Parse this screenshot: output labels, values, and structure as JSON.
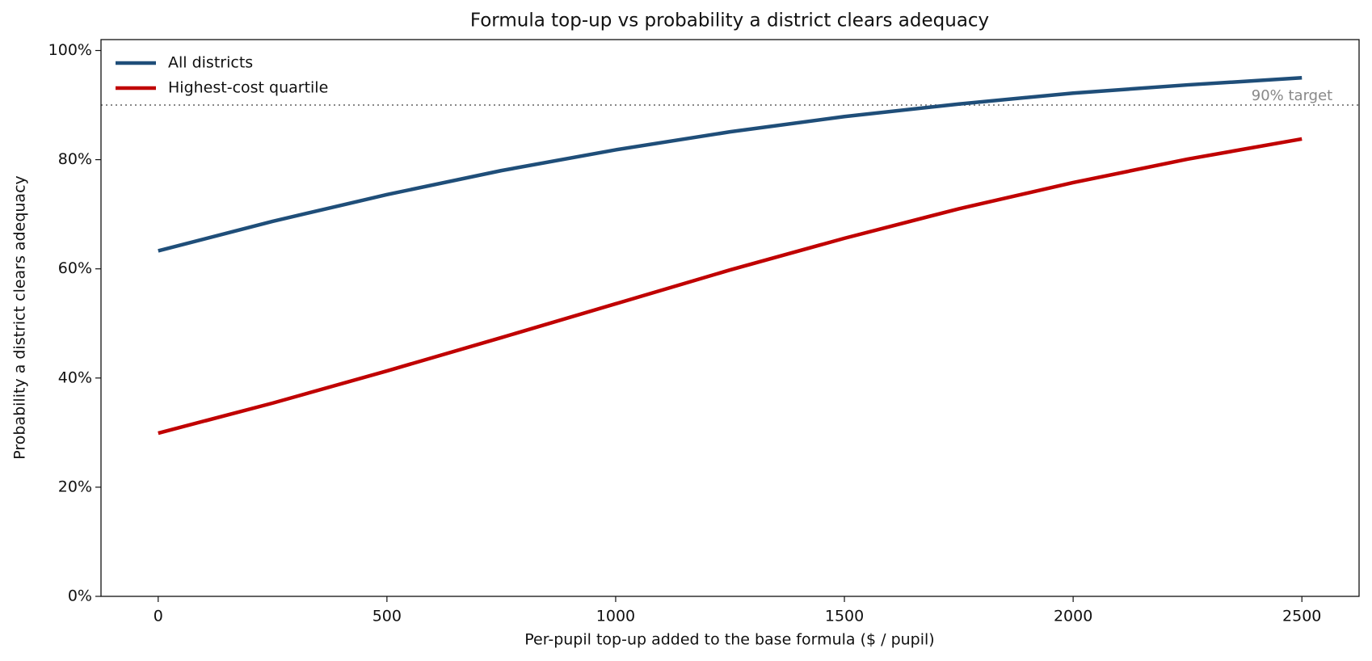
{
  "chart_data": {
    "type": "line",
    "title": "Formula top-up vs probability a district clears adequacy",
    "xlabel": "Per-pupil top-up added to the base formula  ($ / pupil)",
    "ylabel": "Probability a district clears adequacy",
    "x": [
      0,
      250,
      500,
      750,
      1000,
      1250,
      1500,
      1750,
      2000,
      2250,
      2500
    ],
    "series": [
      {
        "name": "All districts",
        "color": "#1f4e79",
        "values": [
          63.3,
          68.7,
          73.6,
          78.0,
          81.8,
          85.1,
          87.9,
          90.2,
          92.2,
          93.7,
          95.0
        ]
      },
      {
        "name": "Highest-cost quartile",
        "color": "#c00000",
        "values": [
          29.9,
          35.4,
          41.3,
          47.4,
          53.6,
          59.8,
          65.6,
          71.0,
          75.8,
          80.1,
          83.8
        ]
      }
    ],
    "xlim": [
      -125,
      2625
    ],
    "ylim": [
      0,
      102
    ],
    "xticks": [
      0,
      500,
      1000,
      1500,
      2000,
      2500
    ],
    "yticks": [
      {
        "value": 0,
        "label": "0%"
      },
      {
        "value": 20,
        "label": "20%"
      },
      {
        "value": 40,
        "label": "40%"
      },
      {
        "value": 60,
        "label": "60%"
      },
      {
        "value": 80,
        "label": "80%"
      },
      {
        "value": 100,
        "label": "100%"
      }
    ],
    "reference_line": {
      "value": 90,
      "label": "90% target",
      "color": "#888888"
    },
    "legend": "upper left",
    "grid": false
  }
}
